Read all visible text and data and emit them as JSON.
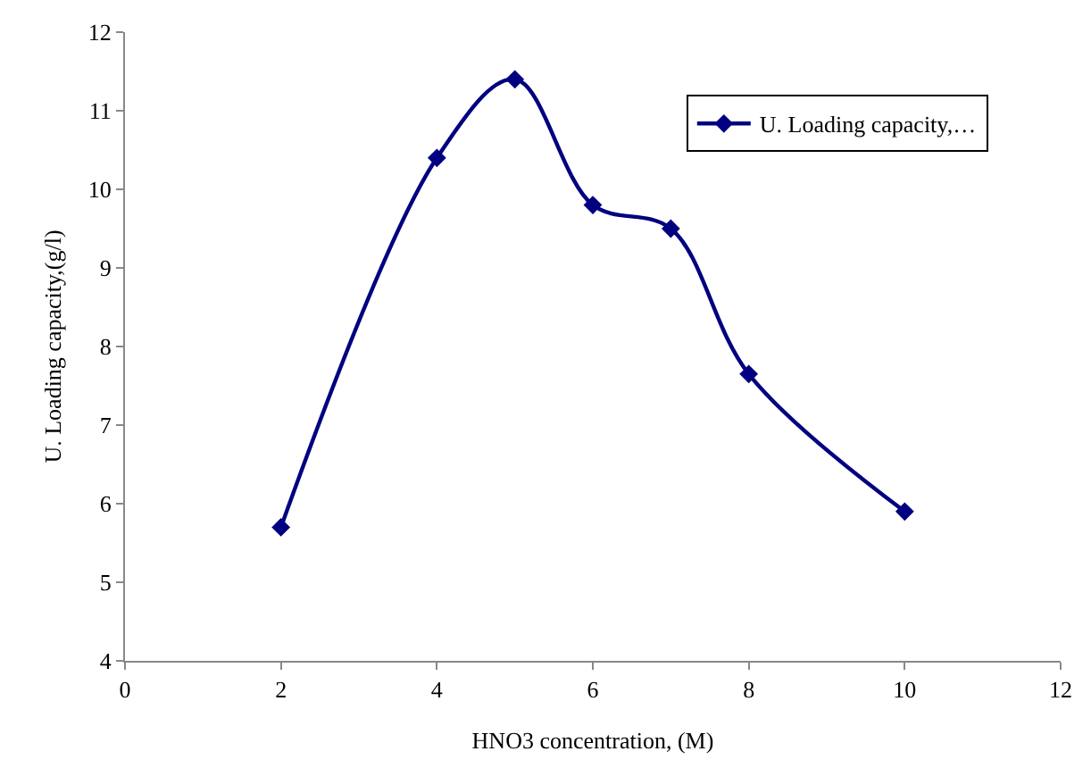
{
  "chart_data": {
    "type": "line",
    "xlabel": "HNO3 concentration, (M)",
    "ylabel": "U. Loading capacity,(g/l)",
    "x": [
      2,
      4,
      5,
      6,
      7,
      8,
      10
    ],
    "series": [
      {
        "name": "U. Loading capacity,…",
        "color": "#000080",
        "values": [
          5.7,
          10.4,
          11.4,
          9.8,
          9.5,
          7.65,
          5.9
        ]
      }
    ],
    "xlim": [
      0,
      12
    ],
    "xticks": [
      0,
      2,
      4,
      6,
      8,
      10,
      12
    ],
    "ylim": [
      4,
      12
    ],
    "yticks": [
      4,
      5,
      6,
      7,
      8,
      9,
      10,
      11,
      12
    ],
    "grid": false,
    "legend": "top right",
    "marker": "diamond",
    "line_style": "solid"
  }
}
